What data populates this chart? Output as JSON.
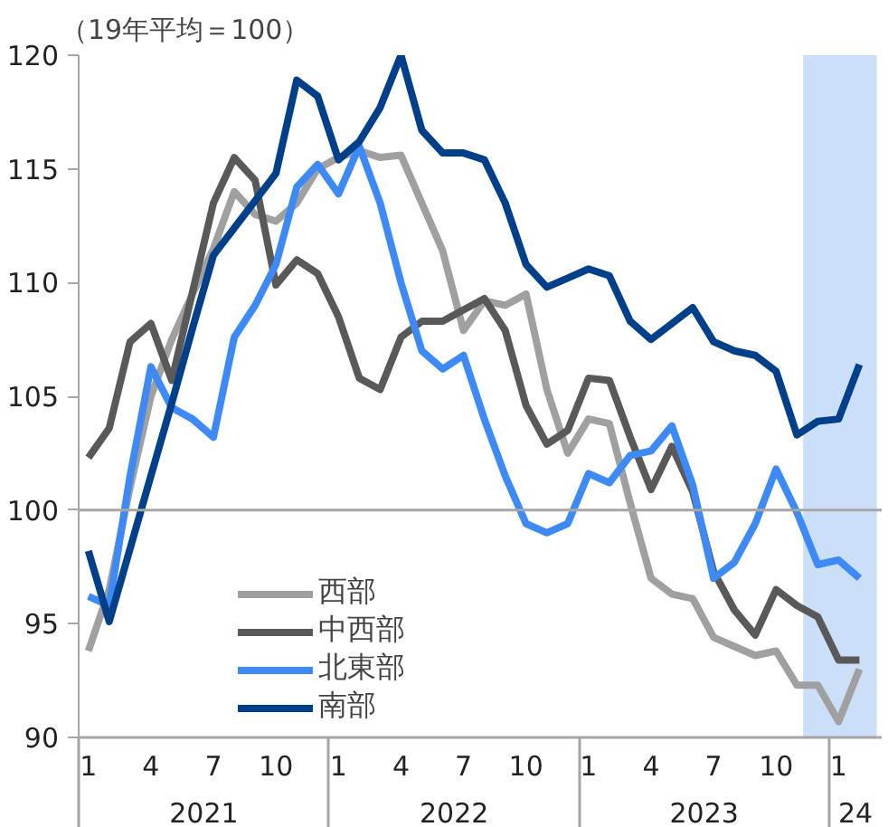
{
  "chart_data": {
    "type": "line",
    "title": "（19年平均＝100）",
    "x": [
      "2021-01",
      "2021-02",
      "2021-03",
      "2021-04",
      "2021-05",
      "2021-06",
      "2021-07",
      "2021-08",
      "2021-09",
      "2021-10",
      "2021-11",
      "2021-12",
      "2022-01",
      "2022-02",
      "2022-03",
      "2022-04",
      "2022-05",
      "2022-06",
      "2022-07",
      "2022-08",
      "2022-09",
      "2022-10",
      "2022-11",
      "2022-12",
      "2023-01",
      "2023-02",
      "2023-03",
      "2023-04",
      "2023-05",
      "2023-06",
      "2023-07",
      "2023-08",
      "2023-09",
      "2023-10",
      "2023-11",
      "2023-12",
      "2024-01",
      "2024-02"
    ],
    "series": [
      {
        "name": "西部",
        "color": "#a0a0a0",
        "values": [
          93.8,
          96.5,
          101,
          105,
          107.5,
          109.5,
          111.5,
          114,
          113,
          112.7,
          113.5,
          115,
          115.5,
          115.8,
          115.5,
          115.6,
          113.5,
          111.4,
          107.9,
          109.2,
          109,
          109.5,
          105.3,
          102.5,
          104,
          103.8,
          100.3,
          97,
          96.3,
          96.1,
          94.4,
          94,
          93.6,
          93.8,
          92.3,
          92.3,
          90.7,
          93
        ]
      },
      {
        "name": "中西部",
        "color": "#595959",
        "values": [
          102.3,
          103.6,
          107.4,
          108.2,
          105.7,
          109.6,
          113.5,
          115.5,
          114.5,
          109.9,
          111,
          110.4,
          108.5,
          105.8,
          105.3,
          107.6,
          108.3,
          108.3,
          108.8,
          109.3,
          107.9,
          104.6,
          102.9,
          103.5,
          105.8,
          105.7,
          103.2,
          100.9,
          102.8,
          100.8,
          97.3,
          95.6,
          94.5,
          96.5,
          95.8,
          95.3,
          93.4,
          93.4
        ]
      },
      {
        "name": "北東部",
        "color": "#3d8af7",
        "values": [
          96.2,
          95.8,
          101.5,
          106.3,
          104.5,
          104,
          103.2,
          107.6,
          109,
          110.8,
          114.2,
          115.2,
          113.9,
          116,
          113.5,
          110,
          107,
          106.2,
          106.8,
          104,
          101.5,
          99.4,
          99,
          99.4,
          101.6,
          101.2,
          102.4,
          102.6,
          103.7,
          101.1,
          97,
          97.7,
          99.4,
          101.8,
          99.9,
          97.6,
          97.8,
          97
        ]
      },
      {
        "name": "南部",
        "color": "#003f8a",
        "values": [
          98.2,
          95.1,
          98.3,
          101.5,
          104.7,
          108,
          111.2,
          112.4,
          113.6,
          114.8,
          118.9,
          118.2,
          115.4,
          116.2,
          117.7,
          120,
          116.7,
          115.7,
          115.7,
          115.4,
          113.5,
          110.8,
          109.8,
          110.2,
          110.6,
          110.3,
          108.3,
          107.5,
          108.2,
          108.9,
          107.4,
          107,
          106.8,
          106.1,
          103.3,
          103.9,
          104,
          106.4
        ]
      }
    ],
    "xlim": [
      "2020-12-17",
      "2024-03-03"
    ],
    "xticks": [
      {
        "value": "2021-01",
        "label": "1"
      },
      {
        "value": "2021-04",
        "label": "4"
      },
      {
        "value": "2021-07",
        "label": "7"
      },
      {
        "value": "2021-10",
        "label": "10"
      },
      {
        "value": "2022-01",
        "label": "1"
      },
      {
        "value": "2022-04",
        "label": "4"
      },
      {
        "value": "2022-07",
        "label": "7"
      },
      {
        "value": "2022-10",
        "label": "10"
      },
      {
        "value": "2023-01",
        "label": "1"
      },
      {
        "value": "2023-04",
        "label": "4"
      },
      {
        "value": "2023-07",
        "label": "7"
      },
      {
        "value": "2023-10",
        "label": "10"
      },
      {
        "value": "2024-01",
        "label": "1"
      }
    ],
    "ylim": [
      90,
      120
    ],
    "yticks": [
      90,
      95,
      100,
      105,
      110,
      115,
      120
    ],
    "annotations": [
      "2021",
      "2022",
      "2023",
      "24"
    ],
    "ref_lines": [
      {
        "axis": "y",
        "value": 100,
        "color": "#a6a6a6"
      }
    ],
    "bands": [
      {
        "axis": "x",
        "from": "2023-11-10",
        "to": "2024-02-26",
        "color": "#a9c9f5"
      }
    ],
    "legend": "bottom left",
    "grid": false,
    "line_style": "solid",
    "marker": "none"
  }
}
